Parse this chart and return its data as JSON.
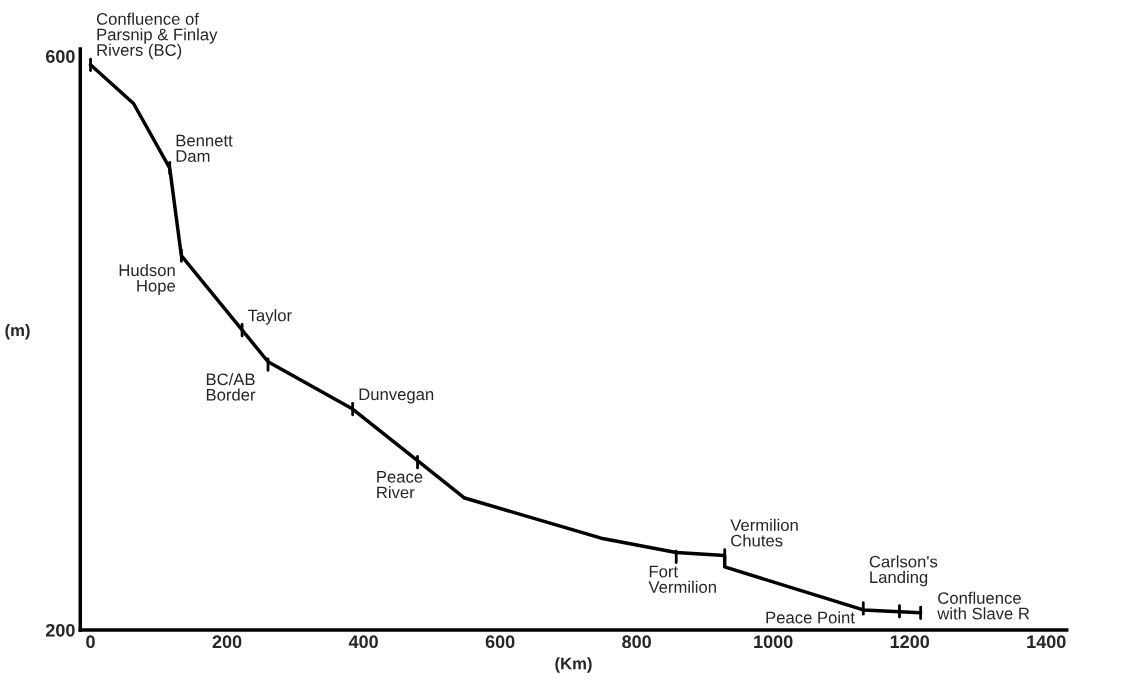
{
  "chart_data": {
    "type": "line",
    "xlabel": "(Km)",
    "ylabel": "(m)",
    "x": [
      0,
      63,
      116,
      133,
      260,
      384,
      479,
      548,
      748,
      858,
      929,
      929,
      1132,
      1216
    ],
    "values": [
      594,
      567,
      522,
      461,
      387,
      354,
      318,
      292,
      264,
      254,
      252,
      244,
      214,
      212
    ],
    "color": "#000000",
    "marker": "none",
    "line_style": "solid",
    "grid": false,
    "legend": false,
    "xlim": [
      -15,
      1430
    ],
    "ylim": [
      200,
      605
    ],
    "xticks": [
      0,
      200,
      400,
      600,
      800,
      1000,
      1200,
      1400
    ],
    "yticks": [
      200,
      600
    ],
    "annotations": [
      {
        "text": "Confluence of\nParsnip & Finlay\nRivers (BC)",
        "x": 0,
        "y": 594
      },
      {
        "text": "Bennett\nDam",
        "x": 116,
        "y": 522
      },
      {
        "text": "Hudson\nHope",
        "x": 133,
        "y": 461
      },
      {
        "text": "Taylor",
        "x": 222,
        "y": 409
      },
      {
        "text": "BC/AB\nBorder",
        "x": 260,
        "y": 385
      },
      {
        "text": "Dunvegan",
        "x": 384,
        "y": 354
      },
      {
        "text": "Peace\nRiver",
        "x": 479,
        "y": 317
      },
      {
        "text": "Fort\nVermilion",
        "x": 858,
        "y": 251
      },
      {
        "text": "Vermilion\nChutes",
        "x": 929,
        "y": 252
      },
      {
        "text": "Peace Point",
        "x": 1132,
        "y": 215
      },
      {
        "text": "Carlson's\nLanding",
        "x": 1185,
        "y": 213
      },
      {
        "text": "Confluence\nwith Slave R",
        "x": 1216,
        "y": 212
      }
    ]
  }
}
